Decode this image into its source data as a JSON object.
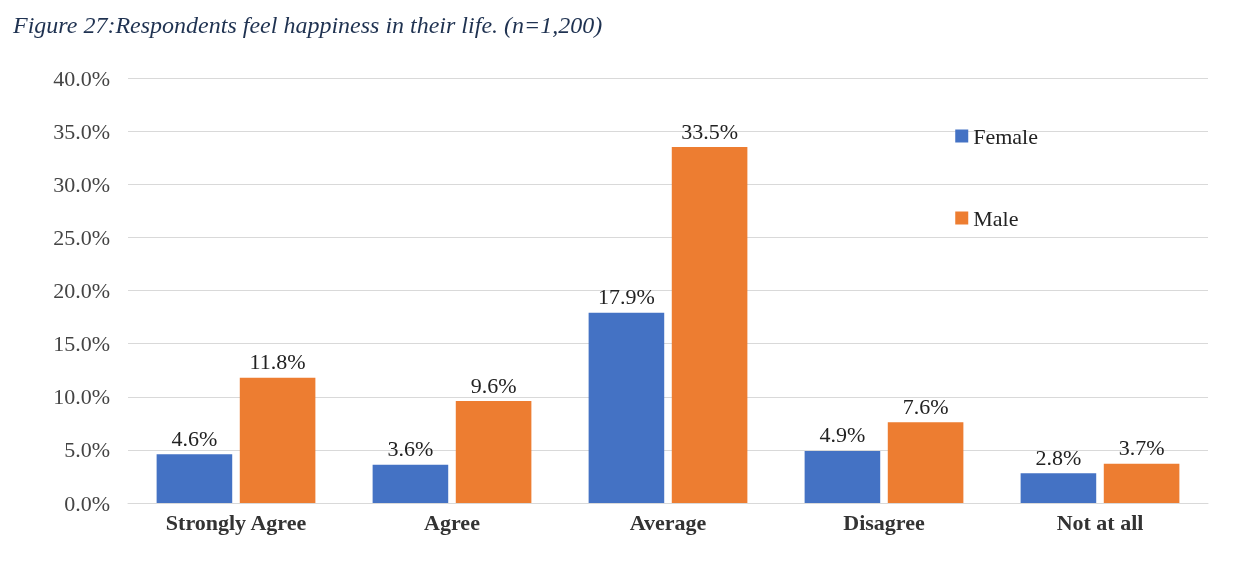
{
  "chart_data": {
    "type": "bar",
    "title": "Figure 27:Respondents feel happiness in their life. (n=1,200)",
    "categories": [
      "Strongly Agree",
      "Agree",
      "Average",
      "Disagree",
      "Not at all"
    ],
    "series": [
      {
        "name": "Female",
        "color": "#4472c4",
        "values": [
          4.6,
          3.6,
          17.9,
          4.9,
          2.8
        ],
        "value_labels": [
          "4.6%",
          "3.6%",
          "17.9%",
          "4.9%",
          "2.8%"
        ]
      },
      {
        "name": "Male",
        "color": "#ed7d31",
        "values": [
          11.8,
          9.6,
          33.5,
          7.6,
          3.7
        ],
        "value_labels": [
          "11.8%",
          "9.6%",
          "33.5%",
          "7.6%",
          "3.7%"
        ]
      }
    ],
    "ylim": [
      0,
      40
    ],
    "yticks": [
      {
        "value": 0,
        "label": "0.0%"
      },
      {
        "value": 5,
        "label": "5.0%"
      },
      {
        "value": 10,
        "label": "10.0%"
      },
      {
        "value": 15,
        "label": "15.0%"
      },
      {
        "value": 20,
        "label": "20.0%"
      },
      {
        "value": 25,
        "label": "25.0%"
      },
      {
        "value": 30,
        "label": "30.0%"
      },
      {
        "value": 35,
        "label": "35.0%"
      },
      {
        "value": 40,
        "label": "40.0%"
      }
    ],
    "grid": "y",
    "legend": "top right"
  }
}
